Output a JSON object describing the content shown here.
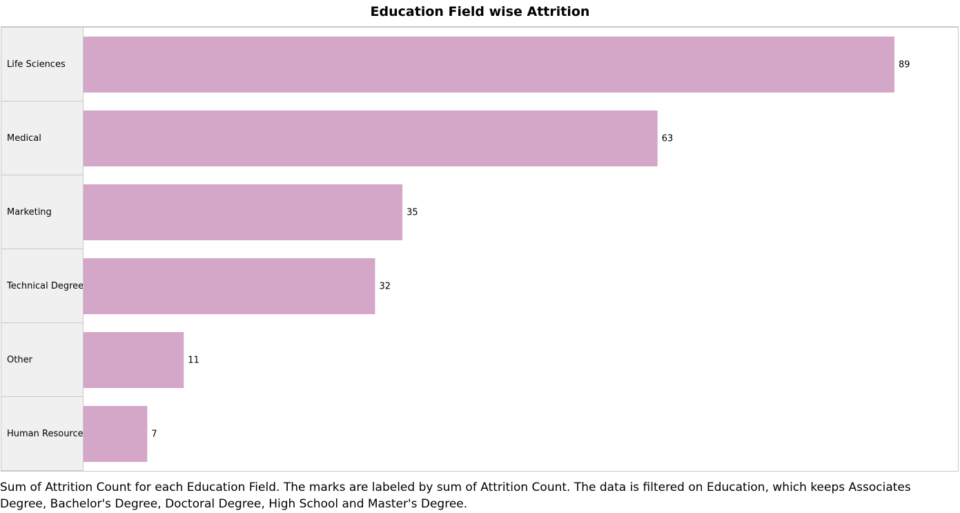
{
  "chart_data": {
    "type": "bar",
    "orientation": "horizontal",
    "title": "Education Field wise Attrition",
    "categories": [
      "Life Sciences",
      "Medical",
      "Marketing",
      "Technical Degree",
      "Other",
      "Human Resources"
    ],
    "values": [
      89,
      63,
      35,
      32,
      11,
      7
    ],
    "data_labels": [
      "89",
      "63",
      "35",
      "32",
      "11",
      "7"
    ],
    "bar_color": "#d4a6c8",
    "grid": false,
    "legend": "none",
    "caption": "Sum of Attrition Count for each Education Field.  The marks are labeled by sum of Attrition Count. The data is filtered on Education, which keeps Associates Degree, Bachelor's Degree, Doctoral Degree, High School and Master's Degree."
  }
}
